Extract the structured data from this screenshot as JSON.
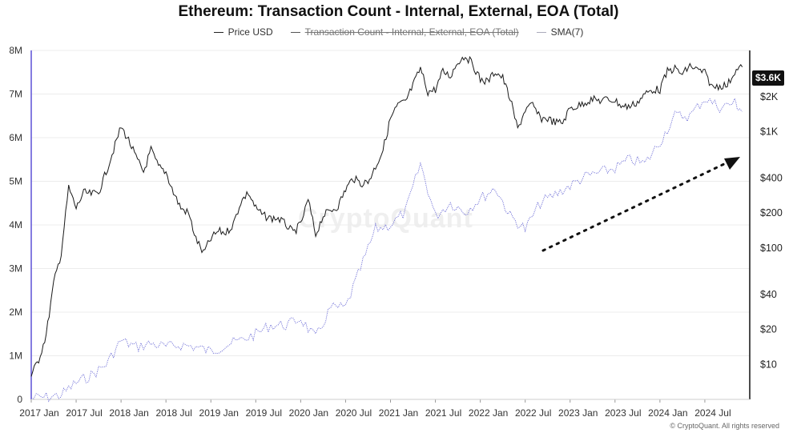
{
  "chart_data": {
    "type": "line",
    "title": "Ethereum: Transaction Count - Internal, External, EOA (Total)",
    "legend": [
      {
        "name": "Price USD",
        "color": "#222222",
        "hidden": false
      },
      {
        "name": "Transaction Count - Internal, External, EOA (Total)",
        "color": "#555555",
        "hidden": true
      },
      {
        "name": "SMA(7)",
        "color": "#6b6bd6",
        "hidden": false
      }
    ],
    "x_ticks": [
      "2017 Jan",
      "2017 Jul",
      "2018 Jan",
      "2018 Jul",
      "2019 Jan",
      "2019 Jul",
      "2020 Jan",
      "2020 Jul",
      "2021 Jan",
      "2021 Jul",
      "2022 Jan",
      "2022 Jul",
      "2023 Jan",
      "2023 Jul",
      "2024 Jan",
      "2024 Jul"
    ],
    "left_axis": {
      "ticks": [
        "0",
        "1M",
        "2M",
        "3M",
        "4M",
        "5M",
        "6M",
        "7M",
        "8M"
      ],
      "values": [
        0,
        1000000,
        2000000,
        3000000,
        4000000,
        5000000,
        6000000,
        7000000,
        8000000
      ],
      "range": [
        0,
        8000000
      ]
    },
    "right_axis": {
      "scale": "log",
      "ticks": [
        "$10",
        "$20",
        "$40",
        "$100",
        "$200",
        "$400",
        "$1K",
        "$2K"
      ],
      "values": [
        10,
        20,
        40,
        100,
        200,
        400,
        1000,
        2000
      ],
      "range": [
        5,
        5000
      ]
    },
    "current_price_label": "$3.6K",
    "series": [
      {
        "name": "Price USD",
        "axis": "right",
        "x": [
          "2017-01",
          "2017-02",
          "2017-03",
          "2017-04",
          "2017-05",
          "2017-06",
          "2017-07",
          "2017-08",
          "2017-09",
          "2017-10",
          "2017-11",
          "2017-12",
          "2018-01",
          "2018-02",
          "2018-03",
          "2018-04",
          "2018-05",
          "2018-06",
          "2018-07",
          "2018-08",
          "2018-09",
          "2018-10",
          "2018-11",
          "2018-12",
          "2019-01",
          "2019-02",
          "2019-03",
          "2019-04",
          "2019-05",
          "2019-06",
          "2019-07",
          "2019-08",
          "2019-09",
          "2019-10",
          "2019-11",
          "2019-12",
          "2020-01",
          "2020-02",
          "2020-03",
          "2020-04",
          "2020-05",
          "2020-06",
          "2020-07",
          "2020-08",
          "2020-09",
          "2020-10",
          "2020-11",
          "2020-12",
          "2021-01",
          "2021-02",
          "2021-03",
          "2021-04",
          "2021-05",
          "2021-06",
          "2021-07",
          "2021-08",
          "2021-09",
          "2021-10",
          "2021-11",
          "2021-12",
          "2022-01",
          "2022-02",
          "2022-03",
          "2022-04",
          "2022-05",
          "2022-06",
          "2022-07",
          "2022-08",
          "2022-09",
          "2022-10",
          "2022-11",
          "2022-12",
          "2023-01",
          "2023-02",
          "2023-03",
          "2023-04",
          "2023-05",
          "2023-06",
          "2023-07",
          "2023-08",
          "2023-09",
          "2023-10",
          "2023-11",
          "2023-12",
          "2024-01",
          "2024-02",
          "2024-03",
          "2024-04",
          "2024-05",
          "2024-06",
          "2024-07",
          "2024-08",
          "2024-09",
          "2024-10",
          "2024-11",
          "2024-12"
        ],
        "values": [
          8,
          11,
          18,
          50,
          90,
          330,
          220,
          300,
          290,
          300,
          450,
          700,
          1100,
          850,
          600,
          450,
          700,
          500,
          450,
          300,
          220,
          200,
          120,
          90,
          120,
          140,
          135,
          160,
          250,
          300,
          220,
          190,
          180,
          180,
          160,
          135,
          160,
          260,
          130,
          190,
          210,
          230,
          320,
          400,
          360,
          370,
          500,
          700,
          1300,
          1700,
          1800,
          2500,
          3500,
          2200,
          2300,
          3300,
          3000,
          4000,
          4500,
          3800,
          2800,
          2700,
          3300,
          2900,
          1900,
          1050,
          1550,
          1700,
          1300,
          1300,
          1200,
          1200,
          1600,
          1650,
          1800,
          1900,
          1850,
          1900,
          1850,
          1650,
          1650,
          1800,
          2100,
          2300,
          2300,
          3300,
          3500,
          3100,
          3700,
          3400,
          3200,
          2400,
          2500,
          2500,
          3300,
          3600
        ]
      },
      {
        "name": "SMA(7)",
        "axis": "left",
        "x": [
          "2017-01",
          "2017-03",
          "2017-05",
          "2017-07",
          "2017-09",
          "2017-11",
          "2018-01",
          "2018-03",
          "2018-05",
          "2018-07",
          "2018-09",
          "2018-11",
          "2019-01",
          "2019-03",
          "2019-05",
          "2019-07",
          "2019-09",
          "2019-11",
          "2020-01",
          "2020-03",
          "2020-05",
          "2020-07",
          "2020-09",
          "2020-11",
          "2021-01",
          "2021-03",
          "2021-05",
          "2021-07",
          "2021-09",
          "2021-11",
          "2022-01",
          "2022-03",
          "2022-05",
          "2022-07",
          "2022-09",
          "2022-11",
          "2023-01",
          "2023-03",
          "2023-05",
          "2023-07",
          "2023-09",
          "2023-11",
          "2024-01",
          "2024-03",
          "2024-05",
          "2024-07",
          "2024-09",
          "2024-11",
          "2024-12"
        ],
        "values": [
          30000,
          45000,
          100000,
          380000,
          550000,
          800000,
          1350000,
          1200000,
          1280000,
          1200000,
          1250000,
          1200000,
          1100000,
          1250000,
          1350000,
          1500000,
          1700000,
          1700000,
          1850000,
          1400000,
          2100000,
          2100000,
          3000000,
          3900000,
          4000000,
          4300000,
          5400000,
          4200000,
          4500000,
          4300000,
          4600000,
          4850000,
          4200000,
          3900000,
          4500000,
          4700000,
          4900000,
          5100000,
          5200000,
          5300000,
          5500000,
          5400000,
          5900000,
          6500000,
          6500000,
          6900000,
          6700000,
          6800000,
          6600000
        ]
      }
    ],
    "annotation": "dotted upward trend arrow",
    "watermark": "CryptoQuant",
    "copyright": "© CryptoQuant. All rights reserved"
  }
}
